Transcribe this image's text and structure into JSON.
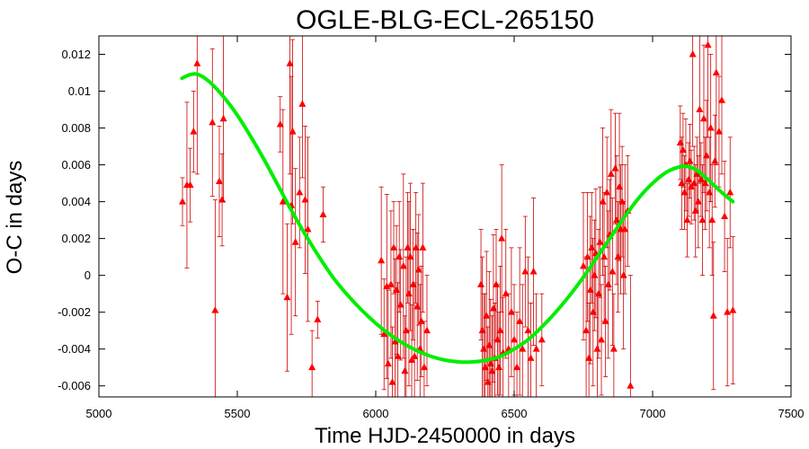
{
  "chart_data": {
    "type": "scatter",
    "title": "OGLE-BLG-ECL-265150",
    "xlabel": "Time HJD-2450000 in days",
    "ylabel": "O-C in days",
    "xlim": [
      5000,
      7500
    ],
    "ylim": [
      -0.0066,
      0.013
    ],
    "xticks": [
      5000,
      5500,
      6000,
      6500,
      7000,
      7500
    ],
    "yticks": [
      -0.006,
      -0.004,
      -0.002,
      0,
      0.002,
      0.004,
      0.006,
      0.008,
      0.01,
      0.012
    ],
    "ytick_labels": [
      "-0.006",
      "-0.004",
      "-0.002",
      "0",
      "0.002",
      "0.004",
      "0.006",
      "0.008",
      "0.01",
      "0.012"
    ],
    "grid": false,
    "colors": {
      "points": "#ff0000",
      "errorbars": "#cc0000",
      "fit": "#00ee00",
      "axes": "#000000"
    },
    "series": [
      {
        "type": "scatter_errorbar",
        "points": [
          {
            "x": 5302,
            "y": 0.004,
            "err": 0.0013
          },
          {
            "x": 5318,
            "y": 0.0049,
            "err": 0.0045
          },
          {
            "x": 5330,
            "y": 0.0049,
            "err": 0.002
          },
          {
            "x": 5342,
            "y": 0.0078,
            "err": 0.0022
          },
          {
            "x": 5355,
            "y": 0.0115,
            "err": 0.006
          },
          {
            "x": 5410,
            "y": 0.0083,
            "err": 0.004
          },
          {
            "x": 5420,
            "y": -0.0019,
            "err": 0.006
          },
          {
            "x": 5435,
            "y": 0.0051,
            "err": 0.003
          },
          {
            "x": 5445,
            "y": 0.0041,
            "err": 0.0025
          },
          {
            "x": 5450,
            "y": 0.0085,
            "err": 0.0045
          },
          {
            "x": 5655,
            "y": 0.0082,
            "err": 0.0015
          },
          {
            "x": 5665,
            "y": 0.004,
            "err": 0.005
          },
          {
            "x": 5680,
            "y": -0.0012,
            "err": 0.004
          },
          {
            "x": 5690,
            "y": 0.0115,
            "err": 0.006
          },
          {
            "x": 5695,
            "y": 0.0038,
            "err": 0.007
          },
          {
            "x": 5700,
            "y": 0.0078,
            "err": 0.005
          },
          {
            "x": 5710,
            "y": 0.0018,
            "err": 0.004
          },
          {
            "x": 5725,
            "y": 0.0045,
            "err": 0.003
          },
          {
            "x": 5735,
            "y": 0.0093,
            "err": 0.004
          },
          {
            "x": 5745,
            "y": 0.0041,
            "err": 0.004
          },
          {
            "x": 5755,
            "y": 0.0025,
            "err": 0.005
          },
          {
            "x": 5770,
            "y": -0.005,
            "err": 0.002
          },
          {
            "x": 5790,
            "y": -0.0024,
            "err": 0.001
          },
          {
            "x": 5810,
            "y": 0.0033,
            "err": 0.0015
          },
          {
            "x": 6020,
            "y": 0.0008,
            "err": 0.004
          },
          {
            "x": 6030,
            "y": -0.0032,
            "err": 0.003
          },
          {
            "x": 6040,
            "y": -0.0006,
            "err": 0.005
          },
          {
            "x": 6045,
            "y": -0.0048,
            "err": 0.004
          },
          {
            "x": 6055,
            "y": -0.0005,
            "err": 0.004
          },
          {
            "x": 6060,
            "y": -0.0058,
            "err": 0.003
          },
          {
            "x": 6065,
            "y": 0.0015,
            "err": 0.0025
          },
          {
            "x": 6070,
            "y": -0.0036,
            "err": 0.0045
          },
          {
            "x": 6075,
            "y": -0.0008,
            "err": 0.0035
          },
          {
            "x": 6080,
            "y": -0.0044,
            "err": 0.004
          },
          {
            "x": 6085,
            "y": 0.001,
            "err": 0.003
          },
          {
            "x": 6090,
            "y": -0.0016,
            "err": 0.003
          },
          {
            "x": 6100,
            "y": 0.0005,
            "err": 0.005
          },
          {
            "x": 6105,
            "y": -0.0052,
            "err": 0.003
          },
          {
            "x": 6110,
            "y": -0.003,
            "err": 0.004
          },
          {
            "x": 6115,
            "y": 0.0015,
            "err": 0.003
          },
          {
            "x": 6120,
            "y": -0.001,
            "err": 0.005
          },
          {
            "x": 6125,
            "y": 0.001,
            "err": 0.004
          },
          {
            "x": 6130,
            "y": -0.0046,
            "err": 0.003
          },
          {
            "x": 6135,
            "y": -0.0005,
            "err": 0.003
          },
          {
            "x": 6140,
            "y": -0.0044,
            "err": 0.004
          },
          {
            "x": 6145,
            "y": 0.0015,
            "err": 0.003
          },
          {
            "x": 6150,
            "y": -0.0017,
            "err": 0.004
          },
          {
            "x": 6155,
            "y": 0.0003,
            "err": 0.003
          },
          {
            "x": 6160,
            "y": -0.004,
            "err": 0.0035
          },
          {
            "x": 6165,
            "y": -0.0025,
            "err": 0.003
          },
          {
            "x": 6170,
            "y": 0.0015,
            "err": 0.0035
          },
          {
            "x": 6175,
            "y": -0.005,
            "err": 0.0025
          },
          {
            "x": 6185,
            "y": -0.003,
            "err": 0.003
          },
          {
            "x": 6380,
            "y": -0.0005,
            "err": 0.003
          },
          {
            "x": 6385,
            "y": -0.003,
            "err": 0.004
          },
          {
            "x": 6390,
            "y": -0.004,
            "err": 0.003
          },
          {
            "x": 6395,
            "y": -0.005,
            "err": 0.004
          },
          {
            "x": 6400,
            "y": -0.0022,
            "err": 0.0035
          },
          {
            "x": 6405,
            "y": -0.0058,
            "err": 0.003
          },
          {
            "x": 6410,
            "y": -0.0038,
            "err": 0.004
          },
          {
            "x": 6415,
            "y": -0.0048,
            "err": 0.0035
          },
          {
            "x": 6420,
            "y": -0.0052,
            "err": 0.003
          },
          {
            "x": 6425,
            "y": -0.0018,
            "err": 0.004
          },
          {
            "x": 6430,
            "y": -0.0045,
            "err": 0.003
          },
          {
            "x": 6435,
            "y": -0.0005,
            "err": 0.003
          },
          {
            "x": 6440,
            "y": -0.0035,
            "err": 0.003
          },
          {
            "x": 6445,
            "y": -0.005,
            "err": 0.003
          },
          {
            "x": 6450,
            "y": -0.003,
            "err": 0.0035
          },
          {
            "x": 6455,
            "y": 0.002,
            "err": 0.004
          },
          {
            "x": 6460,
            "y": -0.0042,
            "err": 0.003
          },
          {
            "x": 6470,
            "y": -0.001,
            "err": 0.0035
          },
          {
            "x": 6480,
            "y": -0.004,
            "err": 0.003
          },
          {
            "x": 6490,
            "y": -0.002,
            "err": 0.0035
          },
          {
            "x": 6500,
            "y": -0.0035,
            "err": 0.003
          },
          {
            "x": 6510,
            "y": -0.005,
            "err": 0.003
          },
          {
            "x": 6520,
            "y": -0.0025,
            "err": 0.004
          },
          {
            "x": 6530,
            "y": -0.004,
            "err": 0.0035
          },
          {
            "x": 6540,
            "y": 0.0002,
            "err": 0.003
          },
          {
            "x": 6550,
            "y": -0.003,
            "err": 0.004
          },
          {
            "x": 6560,
            "y": -0.0045,
            "err": 0.003
          },
          {
            "x": 6570,
            "y": 0.0002,
            "err": 0.004
          },
          {
            "x": 6580,
            "y": -0.004,
            "err": 0.003
          },
          {
            "x": 6600,
            "y": -0.0035,
            "err": 0.0025
          },
          {
            "x": 6750,
            "y": 0.0005,
            "err": 0.004
          },
          {
            "x": 6760,
            "y": -0.003,
            "err": 0.004
          },
          {
            "x": 6765,
            "y": 0.001,
            "err": 0.0035
          },
          {
            "x": 6770,
            "y": -0.0045,
            "err": 0.003
          },
          {
            "x": 6775,
            "y": -0.0008,
            "err": 0.004
          },
          {
            "x": 6780,
            "y": 0.0015,
            "err": 0.003
          },
          {
            "x": 6785,
            "y": -0.002,
            "err": 0.004
          },
          {
            "x": 6790,
            "y": 0.0,
            "err": 0.003
          },
          {
            "x": 6795,
            "y": 0.0012,
            "err": 0.0035
          },
          {
            "x": 6800,
            "y": -0.004,
            "err": 0.003
          },
          {
            "x": 6805,
            "y": -0.001,
            "err": 0.0035
          },
          {
            "x": 6810,
            "y": 0.0018,
            "err": 0.003
          },
          {
            "x": 6815,
            "y": -0.0035,
            "err": 0.003
          },
          {
            "x": 6820,
            "y": 0.004,
            "err": 0.004
          },
          {
            "x": 6825,
            "y": 0.001,
            "err": 0.0035
          },
          {
            "x": 6830,
            "y": -0.0025,
            "err": 0.003
          },
          {
            "x": 6835,
            "y": 0.0045,
            "err": 0.003
          },
          {
            "x": 6840,
            "y": -0.0005,
            "err": 0.004
          },
          {
            "x": 6845,
            "y": 0.0022,
            "err": 0.003
          },
          {
            "x": 6850,
            "y": 0.0055,
            "err": 0.0035
          },
          {
            "x": 6855,
            "y": 0.0002,
            "err": 0.004
          },
          {
            "x": 6860,
            "y": -0.004,
            "err": 0.003
          },
          {
            "x": 6865,
            "y": 0.0058,
            "err": 0.003
          },
          {
            "x": 6870,
            "y": 0.003,
            "err": 0.0035
          },
          {
            "x": 6875,
            "y": 0.001,
            "err": 0.003
          },
          {
            "x": 6880,
            "y": 0.0048,
            "err": 0.004
          },
          {
            "x": 6885,
            "y": 0.0025,
            "err": 0.0035
          },
          {
            "x": 6890,
            "y": 0.004,
            "err": 0.003
          },
          {
            "x": 6895,
            "y": 0.0,
            "err": 0.004
          },
          {
            "x": 6900,
            "y": 0.0025,
            "err": 0.0035
          },
          {
            "x": 6910,
            "y": 0.0035,
            "err": 0.003
          },
          {
            "x": 6920,
            "y": -0.006,
            "err": 0.006
          },
          {
            "x": 7100,
            "y": 0.0072,
            "err": 0.002
          },
          {
            "x": 7105,
            "y": 0.005,
            "err": 0.0025
          },
          {
            "x": 7110,
            "y": 0.0068,
            "err": 0.002
          },
          {
            "x": 7115,
            "y": 0.0045,
            "err": 0.002
          },
          {
            "x": 7120,
            "y": 0.006,
            "err": 0.0025
          },
          {
            "x": 7125,
            "y": 0.003,
            "err": 0.002
          },
          {
            "x": 7130,
            "y": 0.0052,
            "err": 0.002
          },
          {
            "x": 7135,
            "y": 0.0062,
            "err": 0.002
          },
          {
            "x": 7140,
            "y": 0.0048,
            "err": 0.002
          },
          {
            "x": 7145,
            "y": 0.012,
            "err": 0.005
          },
          {
            "x": 7150,
            "y": 0.005,
            "err": 0.002
          },
          {
            "x": 7155,
            "y": 0.0035,
            "err": 0.0025
          },
          {
            "x": 7160,
            "y": 0.0055,
            "err": 0.002
          },
          {
            "x": 7165,
            "y": 0.004,
            "err": 0.0025
          },
          {
            "x": 7170,
            "y": 0.009,
            "err": 0.004
          },
          {
            "x": 7175,
            "y": 0.0052,
            "err": 0.002
          },
          {
            "x": 7180,
            "y": 0.003,
            "err": 0.003
          },
          {
            "x": 7185,
            "y": 0.0085,
            "err": 0.004
          },
          {
            "x": 7190,
            "y": 0.005,
            "err": 0.0025
          },
          {
            "x": 7195,
            "y": 0.0065,
            "err": 0.003
          },
          {
            "x": 7200,
            "y": 0.0125,
            "err": 0.005
          },
          {
            "x": 7205,
            "y": 0.0045,
            "err": 0.003
          },
          {
            "x": 7210,
            "y": 0.008,
            "err": 0.004
          },
          {
            "x": 7215,
            "y": 0.003,
            "err": 0.003
          },
          {
            "x": 7220,
            "y": -0.0022,
            "err": 0.004
          },
          {
            "x": 7225,
            "y": 0.0062,
            "err": 0.0025
          },
          {
            "x": 7230,
            "y": 0.011,
            "err": 0.005
          },
          {
            "x": 7240,
            "y": 0.0078,
            "err": 0.003
          },
          {
            "x": 7250,
            "y": 0.0095,
            "err": 0.004
          },
          {
            "x": 7260,
            "y": 0.0032,
            "err": 0.003
          },
          {
            "x": 7270,
            "y": -0.002,
            "err": 0.004
          },
          {
            "x": 7280,
            "y": 0.0045,
            "err": 0.003
          },
          {
            "x": 7290,
            "y": -0.0019,
            "err": 0.004
          }
        ]
      },
      {
        "type": "line",
        "x": [
          5300,
          5330,
          5360,
          5400,
          5450,
          5500,
          5550,
          5600,
          5650,
          5700,
          5750,
          5800,
          5850,
          5900,
          5950,
          6000,
          6050,
          6100,
          6150,
          6200,
          6250,
          6300,
          6350,
          6400,
          6450,
          6500,
          6550,
          6600,
          6650,
          6700,
          6750,
          6800,
          6850,
          6900,
          6950,
          7000,
          7050,
          7100,
          7130,
          7160,
          7200,
          7250,
          7290
        ],
        "y": [
          0.0107,
          0.0109,
          0.0109,
          0.0105,
          0.0097,
          0.0087,
          0.0075,
          0.0062,
          0.0048,
          0.0034,
          0.0021,
          0.0009,
          -0.0002,
          -0.0011,
          -0.0019,
          -0.0026,
          -0.0032,
          -0.0037,
          -0.0041,
          -0.0044,
          -0.0046,
          -0.0047,
          -0.0047,
          -0.0046,
          -0.0044,
          -0.004,
          -0.0035,
          -0.0028,
          -0.002,
          -0.0011,
          -0.0001,
          0.001,
          0.0021,
          0.0032,
          0.0042,
          0.005,
          0.0056,
          0.0059,
          0.0059,
          0.0057,
          0.0052,
          0.0045,
          0.004
        ]
      }
    ]
  }
}
